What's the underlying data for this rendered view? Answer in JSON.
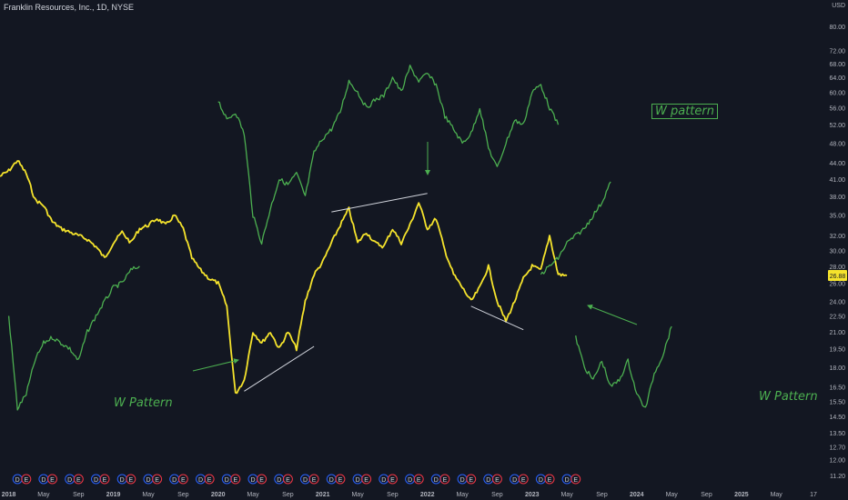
{
  "title": "Franklin Resources, Inc., 1D, NYSE",
  "currency": "USD",
  "current_price": "26.88",
  "annotations": [
    "W pattern",
    "W Pattern",
    "W Pattern"
  ],
  "colors": {
    "background": "#131722",
    "price_line": "#f5e32c",
    "projection": "#4caf50",
    "axis_text": "#b2b5be",
    "trend_line": "#d1d4dc",
    "price_badge": "#f5e32c",
    "event_dividend": "#2962ff",
    "event_earnings": "#f23645"
  },
  "chart_data": {
    "type": "line",
    "yscale": "log",
    "ylabel": "USD",
    "y_ticks": [
      "80.00",
      "72.00",
      "68.00",
      "64.00",
      "60.00",
      "56.00",
      "52.00",
      "48.00",
      "44.00",
      "41.00",
      "38.00",
      "35.00",
      "32.00",
      "30.00",
      "28.00",
      "26.00",
      "24.00",
      "22.50",
      "21.00",
      "19.50",
      "18.00",
      "16.50",
      "15.50",
      "14.50",
      "13.50",
      "12.70",
      "12.00",
      "11.20"
    ],
    "x_ticks": [
      "2018",
      "May",
      "Sep",
      "2019",
      "May",
      "Sep",
      "2020",
      "May",
      "Sep",
      "2021",
      "May",
      "Sep",
      "2022",
      "May",
      "Sep",
      "2023",
      "May",
      "Sep",
      "2024",
      "May",
      "Sep",
      "2025",
      "May",
      "17"
    ],
    "series": [
      {
        "role": "price",
        "x": [
          "2017-12",
          "2018-01",
          "2018-02",
          "2018-03",
          "2018-04",
          "2018-05",
          "2018-06",
          "2018-07",
          "2018-08",
          "2018-09",
          "2018-10",
          "2018-11",
          "2018-12",
          "2019-01",
          "2019-02",
          "2019-03",
          "2019-04",
          "2019-05",
          "2019-06",
          "2019-07",
          "2019-08",
          "2019-09",
          "2019-10",
          "2019-11",
          "2019-12",
          "2020-01",
          "2020-02",
          "2020-03",
          "2020-04",
          "2020-05",
          "2020-06",
          "2020-07",
          "2020-08",
          "2020-09",
          "2020-10",
          "2020-11",
          "2020-12",
          "2021-01",
          "2021-02",
          "2021-03",
          "2021-04",
          "2021-05",
          "2021-06",
          "2021-07",
          "2021-08",
          "2021-09",
          "2021-10",
          "2021-11",
          "2021-12",
          "2022-01",
          "2022-02",
          "2022-03",
          "2022-04",
          "2022-05",
          "2022-06",
          "2022-07",
          "2022-08",
          "2022-09",
          "2022-10",
          "2022-11",
          "2022-12",
          "2023-01",
          "2023-02",
          "2023-03",
          "2023-04",
          "2023-05"
        ],
        "y": [
          41.5,
          42.5,
          44.5,
          42,
          37.5,
          36.5,
          34,
          33,
          32.5,
          32,
          31.5,
          30.5,
          29,
          31,
          32.5,
          31,
          33,
          33.5,
          34.5,
          33.5,
          35,
          33,
          29,
          27.5,
          26.5,
          26,
          23.5,
          16,
          17,
          21,
          20,
          21,
          19.5,
          21,
          19.5,
          24,
          27,
          28.5,
          31,
          33.5,
          36,
          31,
          32.5,
          31,
          30.5,
          33,
          31,
          33.5,
          37,
          33,
          34.5,
          30,
          27,
          25.5,
          24,
          25.5,
          28,
          24,
          22,
          24,
          26.5,
          28,
          27.5,
          32,
          27,
          26.88
        ]
      },
      {
        "role": "projection",
        "x": [
          "2018-01",
          "2018-02",
          "2018-03",
          "2018-04",
          "2018-05",
          "2018-06",
          "2018-07",
          "2018-08",
          "2018-09",
          "2018-10",
          "2018-11",
          "2018-12",
          "2019-01",
          "2019-02",
          "2019-03",
          "2019-04"
        ],
        "y": [
          22.5,
          15,
          16,
          18.5,
          20,
          20.5,
          20,
          19.5,
          18.5,
          21,
          22.5,
          24,
          25.5,
          26,
          27.5,
          28
        ]
      },
      {
        "role": "projection",
        "x": [
          "2020-01",
          "2020-02",
          "2020-03",
          "2020-04",
          "2020-05",
          "2020-06",
          "2020-07",
          "2020-08",
          "2020-09",
          "2020-10",
          "2020-11",
          "2020-12",
          "2021-01",
          "2021-02",
          "2021-03",
          "2021-04",
          "2021-05",
          "2021-06",
          "2021-07",
          "2021-08",
          "2021-09",
          "2021-10",
          "2021-11",
          "2021-12",
          "2022-01",
          "2022-02",
          "2022-03",
          "2022-04",
          "2022-05",
          "2022-06",
          "2022-07",
          "2022-08",
          "2022-09",
          "2022-10",
          "2022-11",
          "2022-12",
          "2023-01",
          "2023-02",
          "2023-03",
          "2023-04"
        ],
        "y": [
          58,
          53,
          55,
          50,
          35,
          31,
          36,
          41,
          40,
          42,
          38,
          46,
          49,
          51,
          55,
          63,
          60,
          56,
          58,
          59,
          64,
          60,
          67,
          63,
          65,
          62,
          54,
          51,
          48,
          50,
          56,
          47,
          43,
          48,
          53,
          52,
          60,
          62,
          56,
          52
        ]
      },
      {
        "role": "projection",
        "x": [
          "2023-02",
          "2023-03",
          "2023-04",
          "2023-05",
          "2023-06",
          "2023-07",
          "2023-08",
          "2023-09",
          "2023-10"
        ],
        "y": [
          27,
          28,
          29,
          31,
          32,
          33,
          35,
          37,
          40.5
        ]
      },
      {
        "role": "projection",
        "x": [
          "2023-06",
          "2023-07",
          "2023-08",
          "2023-09",
          "2023-10",
          "2023-11",
          "2023-12",
          "2024-01",
          "2024-02",
          "2024-03",
          "2024-04",
          "2024-05"
        ],
        "y": [
          20.5,
          18,
          17,
          18.5,
          16.5,
          17,
          18.5,
          16,
          15,
          17.5,
          19,
          21.5
        ]
      }
    ],
    "trend_lines": [
      {
        "x": [
          "2020-04",
          "2020-12"
        ],
        "y": [
          16.2,
          19.7
        ]
      },
      {
        "x": [
          "2021-02",
          "2022-01"
        ],
        "y": [
          35.5,
          38.5
        ]
      },
      {
        "x": [
          "2022-06",
          "2022-12"
        ],
        "y": [
          23.5,
          21.2
        ]
      }
    ],
    "events": [
      {
        "x": "2018-02",
        "type": "D"
      },
      {
        "x": "2018-03",
        "type": "E"
      },
      {
        "x": "2018-05",
        "type": "D"
      },
      {
        "x": "2018-06",
        "type": "E"
      },
      {
        "x": "2018-08",
        "type": "D"
      },
      {
        "x": "2018-09",
        "type": "E"
      },
      {
        "x": "2018-11",
        "type": "D"
      },
      {
        "x": "2018-12",
        "type": "E"
      },
      {
        "x": "2019-02",
        "type": "D"
      },
      {
        "x": "2019-03",
        "type": "E"
      },
      {
        "x": "2019-05",
        "type": "D"
      },
      {
        "x": "2019-06",
        "type": "E"
      },
      {
        "x": "2019-08",
        "type": "D"
      },
      {
        "x": "2019-09",
        "type": "E"
      },
      {
        "x": "2019-11",
        "type": "D"
      },
      {
        "x": "2019-12",
        "type": "E"
      },
      {
        "x": "2020-02",
        "type": "D"
      },
      {
        "x": "2020-03",
        "type": "E"
      },
      {
        "x": "2020-05",
        "type": "D"
      },
      {
        "x": "2020-06",
        "type": "E"
      },
      {
        "x": "2020-08",
        "type": "D"
      },
      {
        "x": "2020-09",
        "type": "E"
      },
      {
        "x": "2020-11",
        "type": "D"
      },
      {
        "x": "2020-12",
        "type": "E"
      },
      {
        "x": "2021-02",
        "type": "D"
      },
      {
        "x": "2021-03",
        "type": "E"
      },
      {
        "x": "2021-05",
        "type": "D"
      },
      {
        "x": "2021-06",
        "type": "E"
      },
      {
        "x": "2021-08",
        "type": "D"
      },
      {
        "x": "2021-09",
        "type": "E"
      },
      {
        "x": "2021-11",
        "type": "D"
      },
      {
        "x": "2021-12",
        "type": "E"
      },
      {
        "x": "2022-02",
        "type": "D"
      },
      {
        "x": "2022-03",
        "type": "E"
      },
      {
        "x": "2022-05",
        "type": "D"
      },
      {
        "x": "2022-06",
        "type": "E"
      },
      {
        "x": "2022-08",
        "type": "D"
      },
      {
        "x": "2022-09",
        "type": "E"
      },
      {
        "x": "2022-11",
        "type": "D"
      },
      {
        "x": "2022-12",
        "type": "E"
      },
      {
        "x": "2023-02",
        "type": "D"
      },
      {
        "x": "2023-03",
        "type": "E"
      },
      {
        "x": "2023-05",
        "type": "D"
      },
      {
        "x": "2023-06",
        "type": "E"
      }
    ]
  }
}
